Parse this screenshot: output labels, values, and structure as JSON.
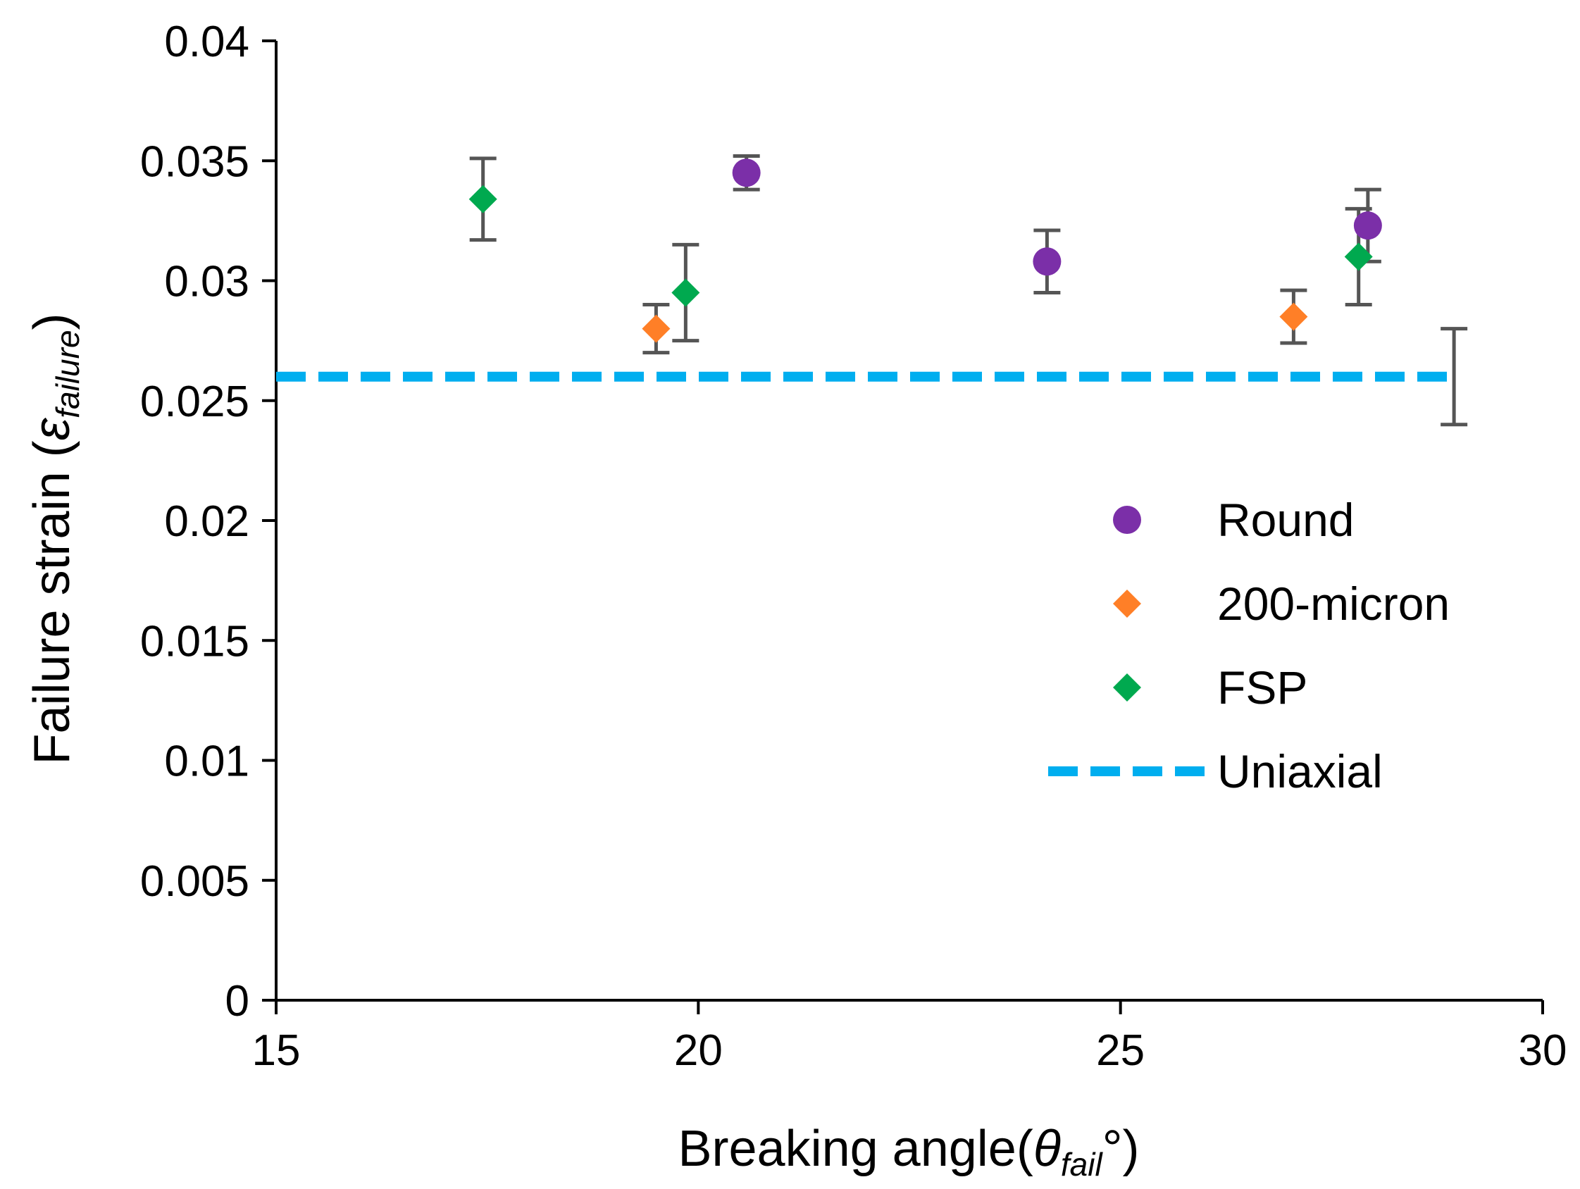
{
  "chart_data": {
    "type": "scatter",
    "title": "",
    "xlabel": {
      "prefix": "Breaking angle(",
      "symbol": "θ",
      "sub": "fail",
      "suffix": "°)"
    },
    "ylabel": {
      "prefix": "Failure strain (",
      "symbol": "ε",
      "sub": "failure",
      "suffix": ")"
    },
    "xlim": [
      15,
      30
    ],
    "ylim": [
      0,
      0.04
    ],
    "xticks": [
      15,
      20,
      25,
      30
    ],
    "yticks": [
      0,
      0.005,
      0.01,
      0.015,
      0.02,
      0.025,
      0.03,
      0.035,
      0.04
    ],
    "xtick_labels": [
      "15",
      "20",
      "25",
      "30"
    ],
    "ytick_labels": [
      "0",
      "0.005",
      "0.01",
      "0.015",
      "0.02",
      "0.025",
      "0.03",
      "0.035",
      "0.04"
    ],
    "grid": false,
    "legend_position": "right",
    "error_bar_color": "#555555",
    "series": [
      {
        "name": "Round",
        "marker": "circle",
        "color": "#7B2FA8",
        "points": [
          {
            "x": 20.57,
            "y": 0.0345,
            "err": 0.0007
          },
          {
            "x": 24.13,
            "y": 0.0308,
            "err": 0.0013
          },
          {
            "x": 27.93,
            "y": 0.0323,
            "err": 0.0015
          }
        ]
      },
      {
        "name": "200-micron",
        "marker": "diamond",
        "color": "#FF7F27",
        "points": [
          {
            "x": 19.5,
            "y": 0.028,
            "err": 0.001
          },
          {
            "x": 27.05,
            "y": 0.0285,
            "err": 0.0011
          }
        ]
      },
      {
        "name": "FSP",
        "marker": "diamond",
        "color": "#00A94F",
        "points": [
          {
            "x": 17.45,
            "y": 0.0334,
            "err": 0.0017
          },
          {
            "x": 19.85,
            "y": 0.0295,
            "err": 0.002
          },
          {
            "x": 27.82,
            "y": 0.031,
            "err": 0.002
          }
        ]
      },
      {
        "name": "Uniaxial",
        "marker": "dashed-line",
        "color": "#00AEEF",
        "y": 0.026,
        "x_range": [
          15,
          28.95
        ],
        "errorbar": {
          "x": 28.95,
          "y": 0.026,
          "err": 0.002
        }
      }
    ]
  }
}
